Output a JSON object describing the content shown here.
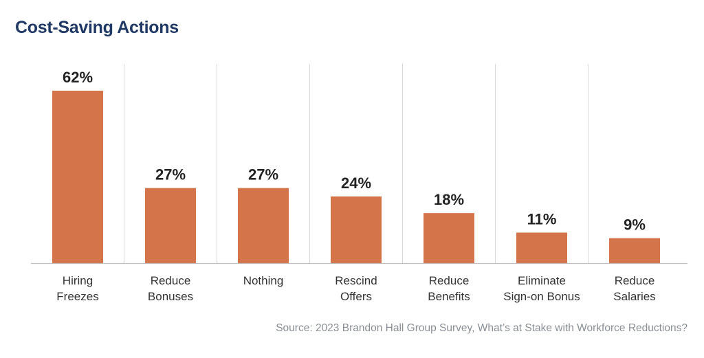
{
  "title": "Cost-Saving Actions",
  "source": "Source: 2023 Brandon Hall Group Survey, What’s at Stake with Workforce Reductions?",
  "colors": {
    "bar": "#d4744a",
    "title": "#1f3864",
    "divider": "#d9d9d9",
    "axis": "#bfbfbf"
  },
  "chart_data": {
    "type": "bar",
    "title": "Cost-Saving Actions",
    "categories": [
      [
        "Hiring",
        "Freezes"
      ],
      [
        "Reduce",
        "Bonuses"
      ],
      [
        "Nothing"
      ],
      [
        "Rescind",
        "Offers"
      ],
      [
        "Reduce",
        "Benefits"
      ],
      [
        "Eliminate",
        "Sign-on Bonus"
      ],
      [
        "Reduce",
        "Salaries"
      ]
    ],
    "values": [
      62,
      27,
      27,
      24,
      18,
      11,
      9
    ],
    "value_labels": [
      "62%",
      "27%",
      "27%",
      "24%",
      "18%",
      "11%",
      "9%"
    ],
    "unit": "%",
    "ylim": [
      0,
      62
    ],
    "grid": false,
    "legend": "none"
  }
}
